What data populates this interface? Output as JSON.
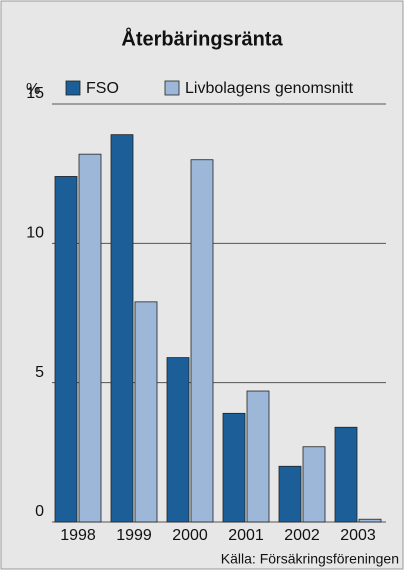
{
  "chart_data": {
    "type": "bar",
    "title": "Återbäringsränta",
    "y_label": "%",
    "categories": [
      "1998",
      "1999",
      "2000",
      "2001",
      "2002",
      "2003"
    ],
    "series": [
      {
        "name": "FSO",
        "color": "#1b5e98",
        "values": [
          12.4,
          13.9,
          5.9,
          3.9,
          2.0,
          3.4
        ]
      },
      {
        "name": "Livbolagens genomsnitt",
        "color": "#9db7d9",
        "values": [
          13.2,
          7.9,
          13.0,
          4.7,
          2.7,
          0.1
        ]
      }
    ],
    "ylim": [
      0,
      15
    ],
    "yticks": [
      0,
      5,
      10,
      15
    ],
    "grid": true,
    "source": "Källa: Försäkringsföreningen"
  }
}
